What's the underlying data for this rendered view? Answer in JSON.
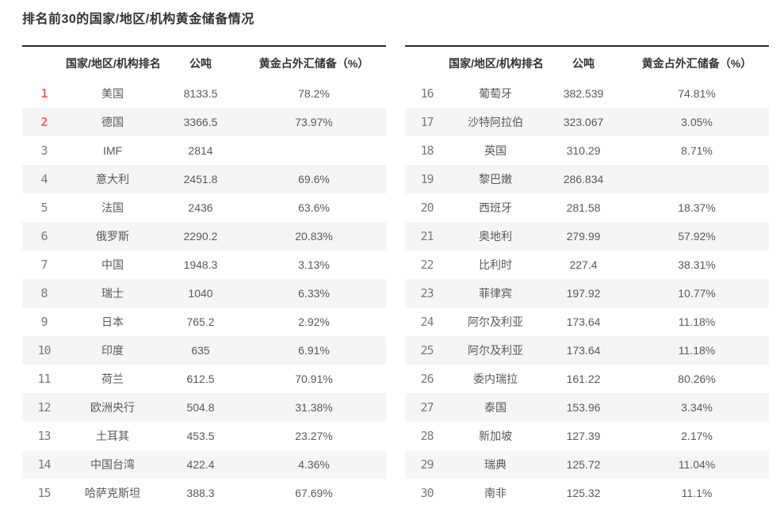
{
  "page_title": "排名前30的国家/地区/机构黄金储备情况",
  "columns": {
    "rank": "",
    "name": "国家/地区/机构排名",
    "tonnes": "公吨",
    "percent": "黄金占外汇储备（%）"
  },
  "left_rows": [
    {
      "rank": "1",
      "name": "美国",
      "tonnes": "8133.5",
      "percent": "78.2%"
    },
    {
      "rank": "2",
      "name": "德国",
      "tonnes": "3366.5",
      "percent": "73.97%"
    },
    {
      "rank": "3",
      "name": "IMF",
      "tonnes": "2814",
      "percent": ""
    },
    {
      "rank": "4",
      "name": "意大利",
      "tonnes": "2451.8",
      "percent": "69.6%"
    },
    {
      "rank": "5",
      "name": "法国",
      "tonnes": "2436",
      "percent": "63.6%"
    },
    {
      "rank": "6",
      "name": "俄罗斯",
      "tonnes": "2290.2",
      "percent": "20.83%"
    },
    {
      "rank": "7",
      "name": "中国",
      "tonnes": "1948.3",
      "percent": "3.13%"
    },
    {
      "rank": "8",
      "name": "瑞士",
      "tonnes": "1040",
      "percent": "6.33%"
    },
    {
      "rank": "9",
      "name": "日本",
      "tonnes": "765.2",
      "percent": "2.92%"
    },
    {
      "rank": "10",
      "name": "印度",
      "tonnes": "635",
      "percent": "6.91%"
    },
    {
      "rank": "11",
      "name": "荷兰",
      "tonnes": "612.5",
      "percent": "70.91%"
    },
    {
      "rank": "12",
      "name": "欧洲央行",
      "tonnes": "504.8",
      "percent": "31.38%"
    },
    {
      "rank": "13",
      "name": "土耳其",
      "tonnes": "453.5",
      "percent": "23.27%"
    },
    {
      "rank": "14",
      "name": "中国台湾",
      "tonnes": "422.4",
      "percent": "4.36%"
    },
    {
      "rank": "15",
      "name": "哈萨克斯坦",
      "tonnes": "388.3",
      "percent": "67.69%"
    }
  ],
  "right_rows": [
    {
      "rank": "16",
      "name": "葡萄牙",
      "tonnes": "382.539",
      "percent": "74.81%"
    },
    {
      "rank": "17",
      "name": "沙特阿拉伯",
      "tonnes": "323.067",
      "percent": "3.05%"
    },
    {
      "rank": "18",
      "name": "英国",
      "tonnes": "310.29",
      "percent": "8.71%"
    },
    {
      "rank": "19",
      "name": "黎巴嫩",
      "tonnes": "286.834",
      "percent": ""
    },
    {
      "rank": "20",
      "name": "西班牙",
      "tonnes": "281.58",
      "percent": "18.37%"
    },
    {
      "rank": "21",
      "name": "奥地利",
      "tonnes": "279.99",
      "percent": "57.92%"
    },
    {
      "rank": "22",
      "name": "比利时",
      "tonnes": "227.4",
      "percent": "38.31%"
    },
    {
      "rank": "23",
      "name": "菲律宾",
      "tonnes": "197.92",
      "percent": "10.77%"
    },
    {
      "rank": "24",
      "name": "阿尔及利亚",
      "tonnes": "173.64",
      "percent": "11.18%"
    },
    {
      "rank": "25",
      "name": "阿尔及利亚",
      "tonnes": "173.64",
      "percent": "11.18%"
    },
    {
      "rank": "26",
      "name": "委内瑞拉",
      "tonnes": "161.22",
      "percent": "80.26%"
    },
    {
      "rank": "27",
      "name": "泰国",
      "tonnes": "153.96",
      "percent": "3.34%"
    },
    {
      "rank": "28",
      "name": "新加坡",
      "tonnes": "127.39",
      "percent": "2.17%"
    },
    {
      "rank": "29",
      "name": "瑞典",
      "tonnes": "125.72",
      "percent": "11.04%"
    },
    {
      "rank": "30",
      "name": "南非",
      "tonnes": "125.32",
      "percent": "11.1%"
    }
  ],
  "colors": {
    "accent_red": "#f06a6a",
    "rank_gray": "#7a7a7a",
    "header_text": "#333333",
    "body_text": "#595959",
    "row_stripe": "#f5f5f5",
    "table_top_border": "#2b2b2b"
  }
}
